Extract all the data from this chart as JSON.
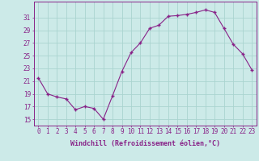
{
  "x": [
    0,
    1,
    2,
    3,
    4,
    5,
    6,
    7,
    8,
    9,
    10,
    11,
    12,
    13,
    14,
    15,
    16,
    17,
    18,
    19,
    20,
    21,
    22,
    23
  ],
  "y": [
    21.5,
    19.0,
    18.5,
    18.2,
    16.5,
    17.0,
    16.7,
    15.0,
    18.7,
    22.5,
    25.5,
    27.0,
    29.3,
    29.8,
    31.2,
    31.3,
    31.5,
    31.8,
    32.2,
    31.8,
    29.3,
    26.8,
    25.3,
    22.8
  ],
  "line_color": "#882288",
  "marker": "+",
  "marker_size": 3.5,
  "marker_lw": 1.0,
  "bg_color": "#cceae8",
  "grid_color": "#aad4d0",
  "tick_color": "#882288",
  "label_color": "#882288",
  "xlabel": "Windchill (Refroidissement éolien,°C)",
  "ylabel_ticks": [
    15,
    17,
    19,
    21,
    23,
    25,
    27,
    29,
    31
  ],
  "ylim": [
    14.0,
    33.5
  ],
  "xlim": [
    -0.5,
    23.5
  ],
  "font_size": 5.5,
  "xlabel_font_size": 6.0,
  "linewidth": 0.8
}
